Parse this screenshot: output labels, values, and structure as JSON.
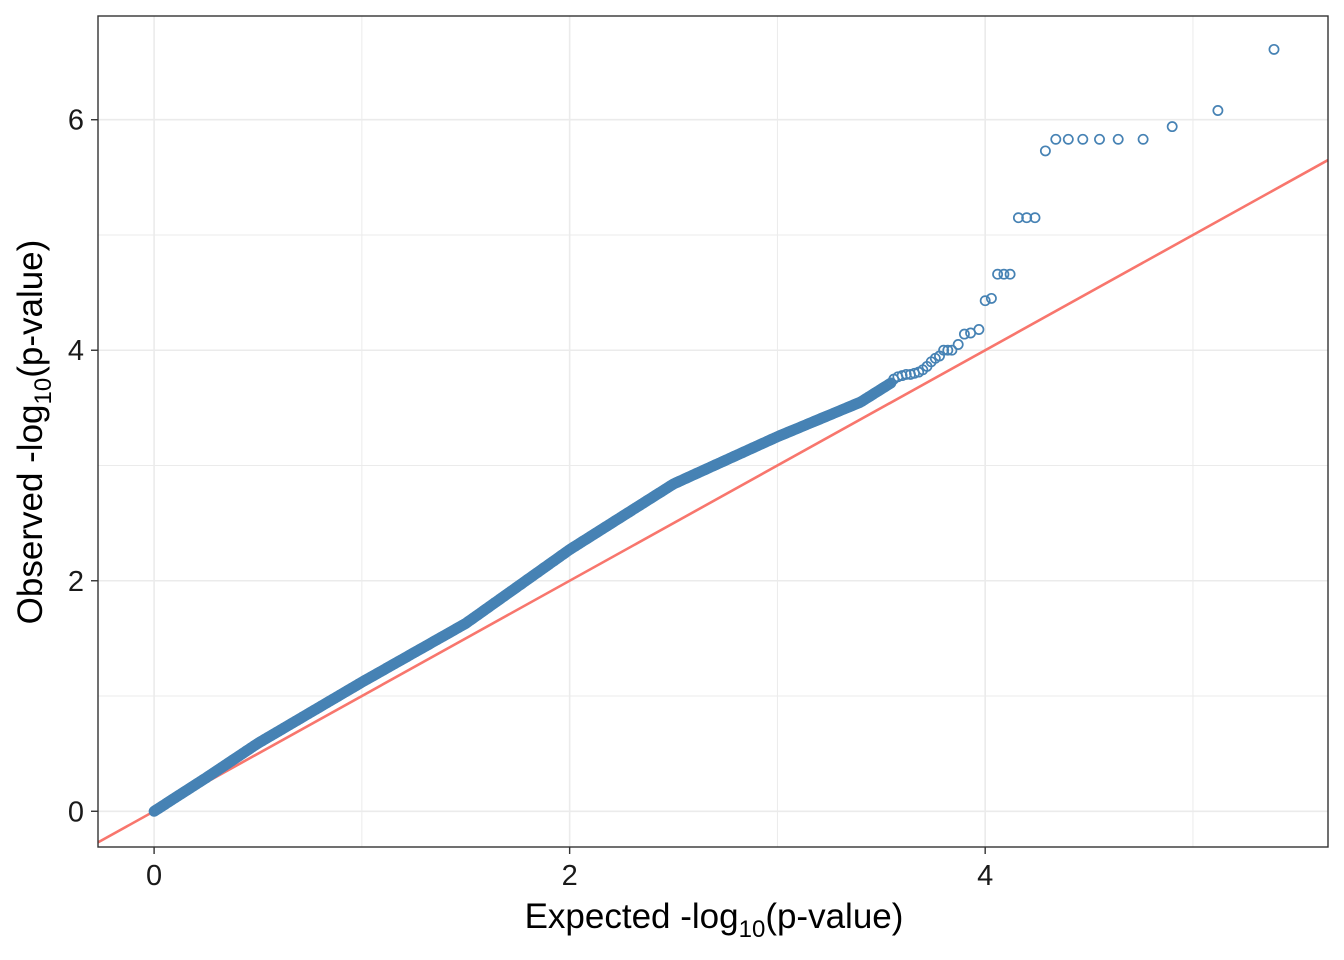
{
  "chart_data": {
    "type": "scatter",
    "title": "",
    "xlabel": {
      "prefix": "Expected -log",
      "sub": "10",
      "suffix": "(p-value)"
    },
    "ylabel": {
      "prefix": "Observed -log",
      "sub": "10",
      "suffix": "(p-value)"
    },
    "xlim": [
      -0.27,
      5.65
    ],
    "ylim": [
      -0.31,
      6.9
    ],
    "x_ticks": [
      0,
      2,
      4
    ],
    "y_ticks": [
      0,
      2,
      4,
      6
    ],
    "x_tick_labels": [
      "0",
      "2",
      "4"
    ],
    "y_tick_labels": [
      "0",
      "2",
      "4",
      "6"
    ],
    "grid": true,
    "reference_line": {
      "intercept": 0,
      "slope": 1,
      "color": "#f8766d"
    },
    "colors": {
      "points": "#4682b4",
      "grid": "#ebebeb",
      "panel_border": "#333333"
    },
    "dense_curve": [
      [
        0.0,
        0.0
      ],
      [
        0.25,
        0.29
      ],
      [
        0.5,
        0.59
      ],
      [
        1.0,
        1.12
      ],
      [
        1.5,
        1.63
      ],
      [
        2.0,
        2.27
      ],
      [
        2.5,
        2.84
      ],
      [
        3.0,
        3.25
      ],
      [
        3.4,
        3.55
      ],
      [
        3.55,
        3.72
      ]
    ],
    "points": [
      [
        3.56,
        3.75
      ],
      [
        3.58,
        3.77
      ],
      [
        3.6,
        3.78
      ],
      [
        3.62,
        3.79
      ],
      [
        3.64,
        3.79
      ],
      [
        3.66,
        3.8
      ],
      [
        3.68,
        3.81
      ],
      [
        3.7,
        3.83
      ],
      [
        3.72,
        3.86
      ],
      [
        3.74,
        3.9
      ],
      [
        3.76,
        3.93
      ],
      [
        3.78,
        3.95
      ],
      [
        3.8,
        4.0
      ],
      [
        3.82,
        4.0
      ],
      [
        3.84,
        4.0
      ],
      [
        3.87,
        4.05
      ],
      [
        3.9,
        4.14
      ],
      [
        3.93,
        4.15
      ],
      [
        3.97,
        4.18
      ],
      [
        4.0,
        4.43
      ],
      [
        4.03,
        4.45
      ],
      [
        4.06,
        4.66
      ],
      [
        4.09,
        4.66
      ],
      [
        4.12,
        4.66
      ],
      [
        4.16,
        5.15
      ],
      [
        4.2,
        5.15
      ],
      [
        4.24,
        5.15
      ],
      [
        4.29,
        5.73
      ],
      [
        4.34,
        5.83
      ],
      [
        4.4,
        5.83
      ],
      [
        4.47,
        5.83
      ],
      [
        4.55,
        5.83
      ],
      [
        4.64,
        5.83
      ],
      [
        4.76,
        5.83
      ],
      [
        4.9,
        5.94
      ],
      [
        5.12,
        6.08
      ],
      [
        5.39,
        6.61
      ]
    ]
  }
}
